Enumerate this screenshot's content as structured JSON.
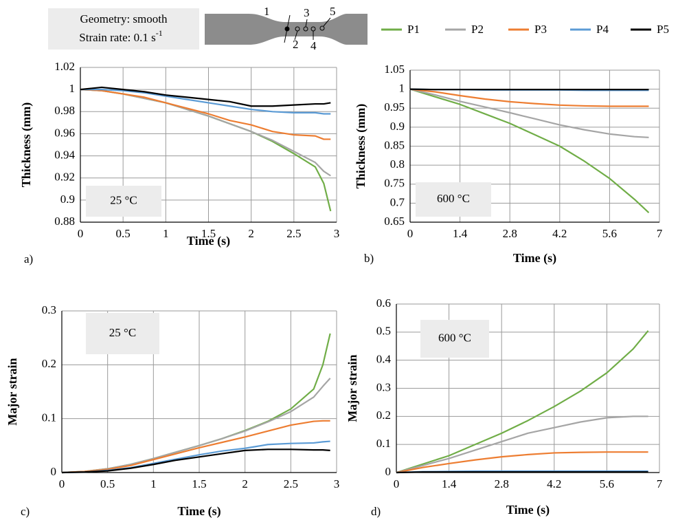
{
  "header": {
    "geometry": "Geometry: smooth",
    "strain_rate": "Strain rate: 0.1 s",
    "strain_rate_exponent": "-1",
    "points": [
      "1",
      "2",
      "3",
      "4",
      "5"
    ]
  },
  "chart_data": [
    {
      "type": "line",
      "panel": "a)",
      "annotation": "25 °C",
      "xlabel": "Time (s)",
      "ylabel": "Thickness (mm)",
      "grid": true,
      "x": [
        0,
        0.25,
        0.5,
        0.75,
        1,
        1.25,
        1.5,
        1.75,
        2,
        2.25,
        2.5,
        2.75,
        2.85,
        2.93
      ],
      "xlim": [
        0,
        3
      ],
      "xticks": [
        0,
        0.5,
        1,
        1.5,
        2,
        2.5,
        3
      ],
      "ylim": [
        0.88,
        1.02
      ],
      "yticks": [
        0.88,
        0.9,
        0.92,
        0.94,
        0.96,
        0.98,
        1,
        1.02
      ],
      "series": [
        {
          "name": "P1",
          "color": "#70ad47",
          "values": [
            1,
            0.999,
            0.996,
            0.992,
            0.988,
            0.982,
            0.976,
            0.969,
            0.962,
            0.953,
            0.942,
            0.93,
            0.915,
            0.89
          ]
        },
        {
          "name": "P2",
          "color": "#a5a5a5",
          "values": [
            1,
            0.999,
            0.996,
            0.992,
            0.988,
            0.982,
            0.976,
            0.969,
            0.962,
            0.954,
            0.944,
            0.934,
            0.926,
            0.922
          ]
        },
        {
          "name": "P3",
          "color": "#ed7d31",
          "values": [
            1,
            0.999,
            0.996,
            0.993,
            0.988,
            0.983,
            0.978,
            0.972,
            0.968,
            0.962,
            0.959,
            0.958,
            0.955,
            0.955
          ]
        },
        {
          "name": "P4",
          "color": "#5b9bd5",
          "values": [
            1,
            1,
            0.999,
            0.997,
            0.994,
            0.991,
            0.988,
            0.985,
            0.982,
            0.98,
            0.979,
            0.979,
            0.978,
            0.978
          ]
        },
        {
          "name": "P5",
          "color": "#000000",
          "values": [
            1,
            1.002,
            1,
            0.998,
            0.995,
            0.993,
            0.991,
            0.989,
            0.985,
            0.985,
            0.986,
            0.987,
            0.987,
            0.988
          ]
        }
      ]
    },
    {
      "type": "line",
      "panel": "b)",
      "annotation": "600 °C",
      "xlabel": "Time (s)",
      "ylabel": "Thickness (mm)",
      "grid": true,
      "x": [
        0,
        0.7,
        1.4,
        2.1,
        2.8,
        3.5,
        4.2,
        4.9,
        5.6,
        6.3,
        6.7
      ],
      "xlim": [
        0,
        7
      ],
      "xticks": [
        0,
        1.4,
        2.8,
        4.2,
        5.6,
        7
      ],
      "ylim": [
        0.65,
        1.05
      ],
      "yticks": [
        0.65,
        0.7,
        0.75,
        0.8,
        0.85,
        0.9,
        0.95,
        1,
        1.05
      ],
      "series": [
        {
          "color": "#70ad47",
          "values": [
            1,
            0.98,
            0.96,
            0.935,
            0.91,
            0.88,
            0.85,
            0.81,
            0.765,
            0.71,
            0.675
          ]
        },
        {
          "color": "#a5a5a5",
          "values": [
            1,
            0.985,
            0.968,
            0.953,
            0.938,
            0.922,
            0.906,
            0.893,
            0.882,
            0.875,
            0.873
          ]
        },
        {
          "color": "#ed7d31",
          "values": [
            1,
            0.993,
            0.983,
            0.974,
            0.967,
            0.962,
            0.958,
            0.956,
            0.955,
            0.955,
            0.955
          ]
        },
        {
          "color": "#5b9bd5",
          "values": [
            1,
            0.999,
            0.999,
            0.998,
            0.998,
            0.998,
            0.998,
            0.997,
            0.997,
            0.997,
            0.997
          ]
        },
        {
          "color": "#000000",
          "values": [
            1,
            0.999,
            0.999,
            0.999,
            0.999,
            0.999,
            0.999,
            0.999,
            0.999,
            0.999,
            0.999
          ]
        }
      ]
    },
    {
      "type": "line",
      "panel": "c)",
      "annotation": "25 °C",
      "xlabel": "Time (s)",
      "ylabel": "Major strain",
      "grid": true,
      "x": [
        0,
        0.25,
        0.5,
        0.75,
        1,
        1.25,
        1.5,
        1.75,
        2,
        2.25,
        2.5,
        2.75,
        2.85,
        2.93
      ],
      "xlim": [
        0,
        3
      ],
      "xticks": [
        0,
        0.5,
        1,
        1.5,
        2,
        2.5,
        3
      ],
      "ylim": [
        0,
        0.3
      ],
      "yticks": [
        0,
        0.1,
        0.2,
        0.3
      ],
      "series": [
        {
          "color": "#70ad47",
          "values": [
            0,
            0.002,
            0.007,
            0.015,
            0.026,
            0.038,
            0.05,
            0.063,
            0.078,
            0.095,
            0.118,
            0.155,
            0.2,
            0.258
          ]
        },
        {
          "color": "#a5a5a5",
          "values": [
            0,
            0.002,
            0.007,
            0.015,
            0.026,
            0.038,
            0.05,
            0.063,
            0.077,
            0.094,
            0.113,
            0.14,
            0.16,
            0.175
          ]
        },
        {
          "color": "#ed7d31",
          "values": [
            0,
            0.002,
            0.006,
            0.013,
            0.024,
            0.035,
            0.046,
            0.056,
            0.066,
            0.077,
            0.088,
            0.095,
            0.096,
            0.096
          ]
        },
        {
          "color": "#5b9bd5",
          "values": [
            0,
            0.001,
            0.004,
            0.009,
            0.017,
            0.025,
            0.033,
            0.04,
            0.045,
            0.052,
            0.054,
            0.055,
            0.057,
            0.058
          ]
        },
        {
          "color": "#000000",
          "values": [
            0,
            0.001,
            0.003,
            0.008,
            0.015,
            0.023,
            0.029,
            0.035,
            0.041,
            0.043,
            0.043,
            0.042,
            0.042,
            0.041
          ]
        }
      ]
    },
    {
      "type": "line",
      "panel": "d)",
      "annotation": "600 °C",
      "xlabel": "Time (s)",
      "ylabel": "Major strain",
      "grid": true,
      "x": [
        0,
        0.7,
        1.4,
        2.1,
        2.8,
        3.5,
        4.2,
        4.9,
        5.6,
        6.3,
        6.7
      ],
      "xlim": [
        0,
        7
      ],
      "xticks": [
        0,
        1.4,
        2.8,
        4.2,
        5.6,
        7
      ],
      "ylim": [
        0,
        0.6
      ],
      "yticks": [
        0,
        0.1,
        0.2,
        0.3,
        0.4,
        0.5,
        0.6
      ],
      "series": [
        {
          "color": "#70ad47",
          "values": [
            0,
            0.03,
            0.06,
            0.1,
            0.14,
            0.185,
            0.235,
            0.29,
            0.355,
            0.44,
            0.505
          ]
        },
        {
          "color": "#a5a5a5",
          "values": [
            0,
            0.025,
            0.05,
            0.08,
            0.11,
            0.14,
            0.16,
            0.18,
            0.195,
            0.2,
            0.2
          ]
        },
        {
          "color": "#ed7d31",
          "values": [
            0,
            0.018,
            0.032,
            0.045,
            0.056,
            0.064,
            0.07,
            0.072,
            0.073,
            0.073,
            0.073
          ]
        },
        {
          "color": "#5b9bd5",
          "values": [
            0,
            0.003,
            0.004,
            0.005,
            0.005,
            0.005,
            0.005,
            0.005,
            0.005,
            0.005,
            0.005
          ]
        },
        {
          "color": "#000000",
          "values": [
            0,
            0.002,
            0.002,
            0.002,
            0.002,
            0.002,
            0.002,
            0.002,
            0.002,
            0.002,
            0.002
          ]
        }
      ]
    }
  ]
}
